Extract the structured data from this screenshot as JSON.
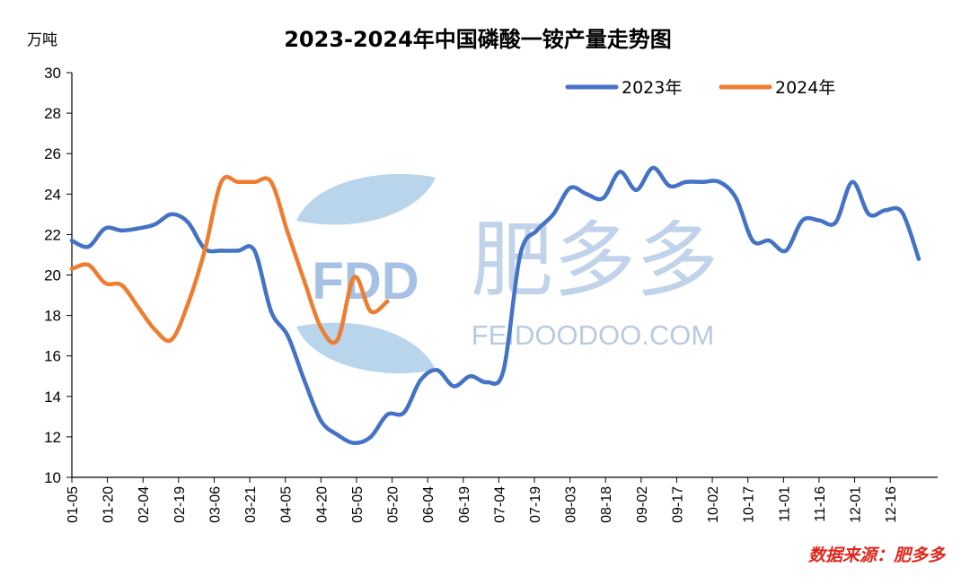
{
  "unit_label": "万吨",
  "source_note": "数据来源：肥多多",
  "watermark": {
    "logo_text": "FDD",
    "brand": "肥多多",
    "site": "FEIDOODOO.COM"
  },
  "colors": {
    "series_2023": "#4472c4",
    "series_2024": "#ed7d31",
    "source_text": "#e0261b",
    "axis": "#000000"
  },
  "chart_data": {
    "type": "line",
    "title": "2023-2024年中国磷酸一铵产量走势图",
    "xlabel": "",
    "ylabel": "万吨",
    "ylim": [
      10,
      30
    ],
    "yticks": [
      10,
      12,
      14,
      16,
      18,
      20,
      22,
      24,
      26,
      28,
      30
    ],
    "grid": false,
    "legend_position": "top-right",
    "x_tick_labels": [
      "01-05",
      "01-20",
      "02-04",
      "02-19",
      "03-06",
      "03-21",
      "04-05",
      "04-20",
      "05-05",
      "05-20",
      "06-04",
      "06-19",
      "07-04",
      "07-19",
      "08-03",
      "08-18",
      "09-02",
      "09-17",
      "10-02",
      "10-17",
      "11-01",
      "11-16",
      "12-01",
      "12-16"
    ],
    "x": [
      "01-05",
      "01-12",
      "01-19",
      "01-26",
      "02-02",
      "02-09",
      "02-16",
      "02-23",
      "03-02",
      "03-09",
      "03-16",
      "03-23",
      "03-30",
      "04-06",
      "04-13",
      "04-20",
      "04-27",
      "05-04",
      "05-11",
      "05-18",
      "05-25",
      "06-01",
      "06-08",
      "06-15",
      "06-22",
      "06-29",
      "07-06",
      "07-13",
      "07-20",
      "07-27",
      "08-03",
      "08-10",
      "08-17",
      "08-24",
      "08-31",
      "09-07",
      "09-14",
      "09-21",
      "09-28",
      "10-05",
      "10-12",
      "10-19",
      "10-26",
      "11-02",
      "11-09",
      "11-16",
      "11-23",
      "11-30",
      "12-07",
      "12-14",
      "12-21",
      "12-28"
    ],
    "series": [
      {
        "name": "2023年",
        "values": [
          21.7,
          21.4,
          22.3,
          22.2,
          22.3,
          22.5,
          23.0,
          22.6,
          21.3,
          21.2,
          21.2,
          21.2,
          18.2,
          17.0,
          14.8,
          12.8,
          12.1,
          11.7,
          12.0,
          13.1,
          13.2,
          14.8,
          15.3,
          14.5,
          15.0,
          14.7,
          15.3,
          21.0,
          22.2,
          23.0,
          24.3,
          24.0,
          23.8,
          25.1,
          24.2,
          25.3,
          24.4,
          24.6,
          24.6,
          24.6,
          23.8,
          21.7,
          21.7,
          21.2,
          22.7,
          22.7,
          22.6,
          24.6,
          23.0,
          23.2,
          23.1,
          20.8
        ]
      },
      {
        "name": "2024年",
        "values": [
          20.3,
          20.5,
          19.6,
          19.5,
          18.4,
          17.3,
          16.8,
          18.6,
          21.2,
          24.6,
          24.6,
          24.6,
          24.6,
          22.1,
          19.7,
          17.4,
          16.8,
          19.9,
          18.2,
          18.7,
          null,
          null,
          null,
          null,
          null,
          null,
          null,
          null,
          null,
          null,
          null,
          null,
          null,
          null,
          null,
          null,
          null,
          null,
          null,
          null,
          null,
          null,
          null,
          null,
          null,
          null,
          null,
          null,
          null,
          null,
          null,
          null
        ]
      }
    ]
  }
}
